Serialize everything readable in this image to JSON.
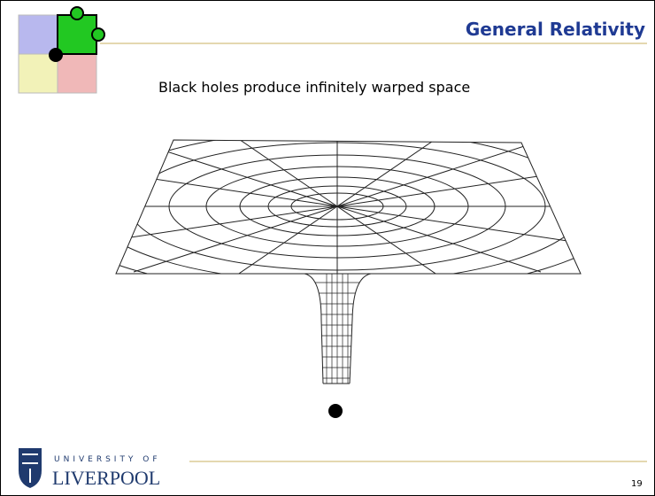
{
  "header": {
    "title": "General Relativity"
  },
  "body": {
    "text": "Black holes produce infinitely warped space"
  },
  "footer": {
    "university": "UNIVERSITY OF",
    "name": "LIVERPOOL",
    "page": "19"
  }
}
